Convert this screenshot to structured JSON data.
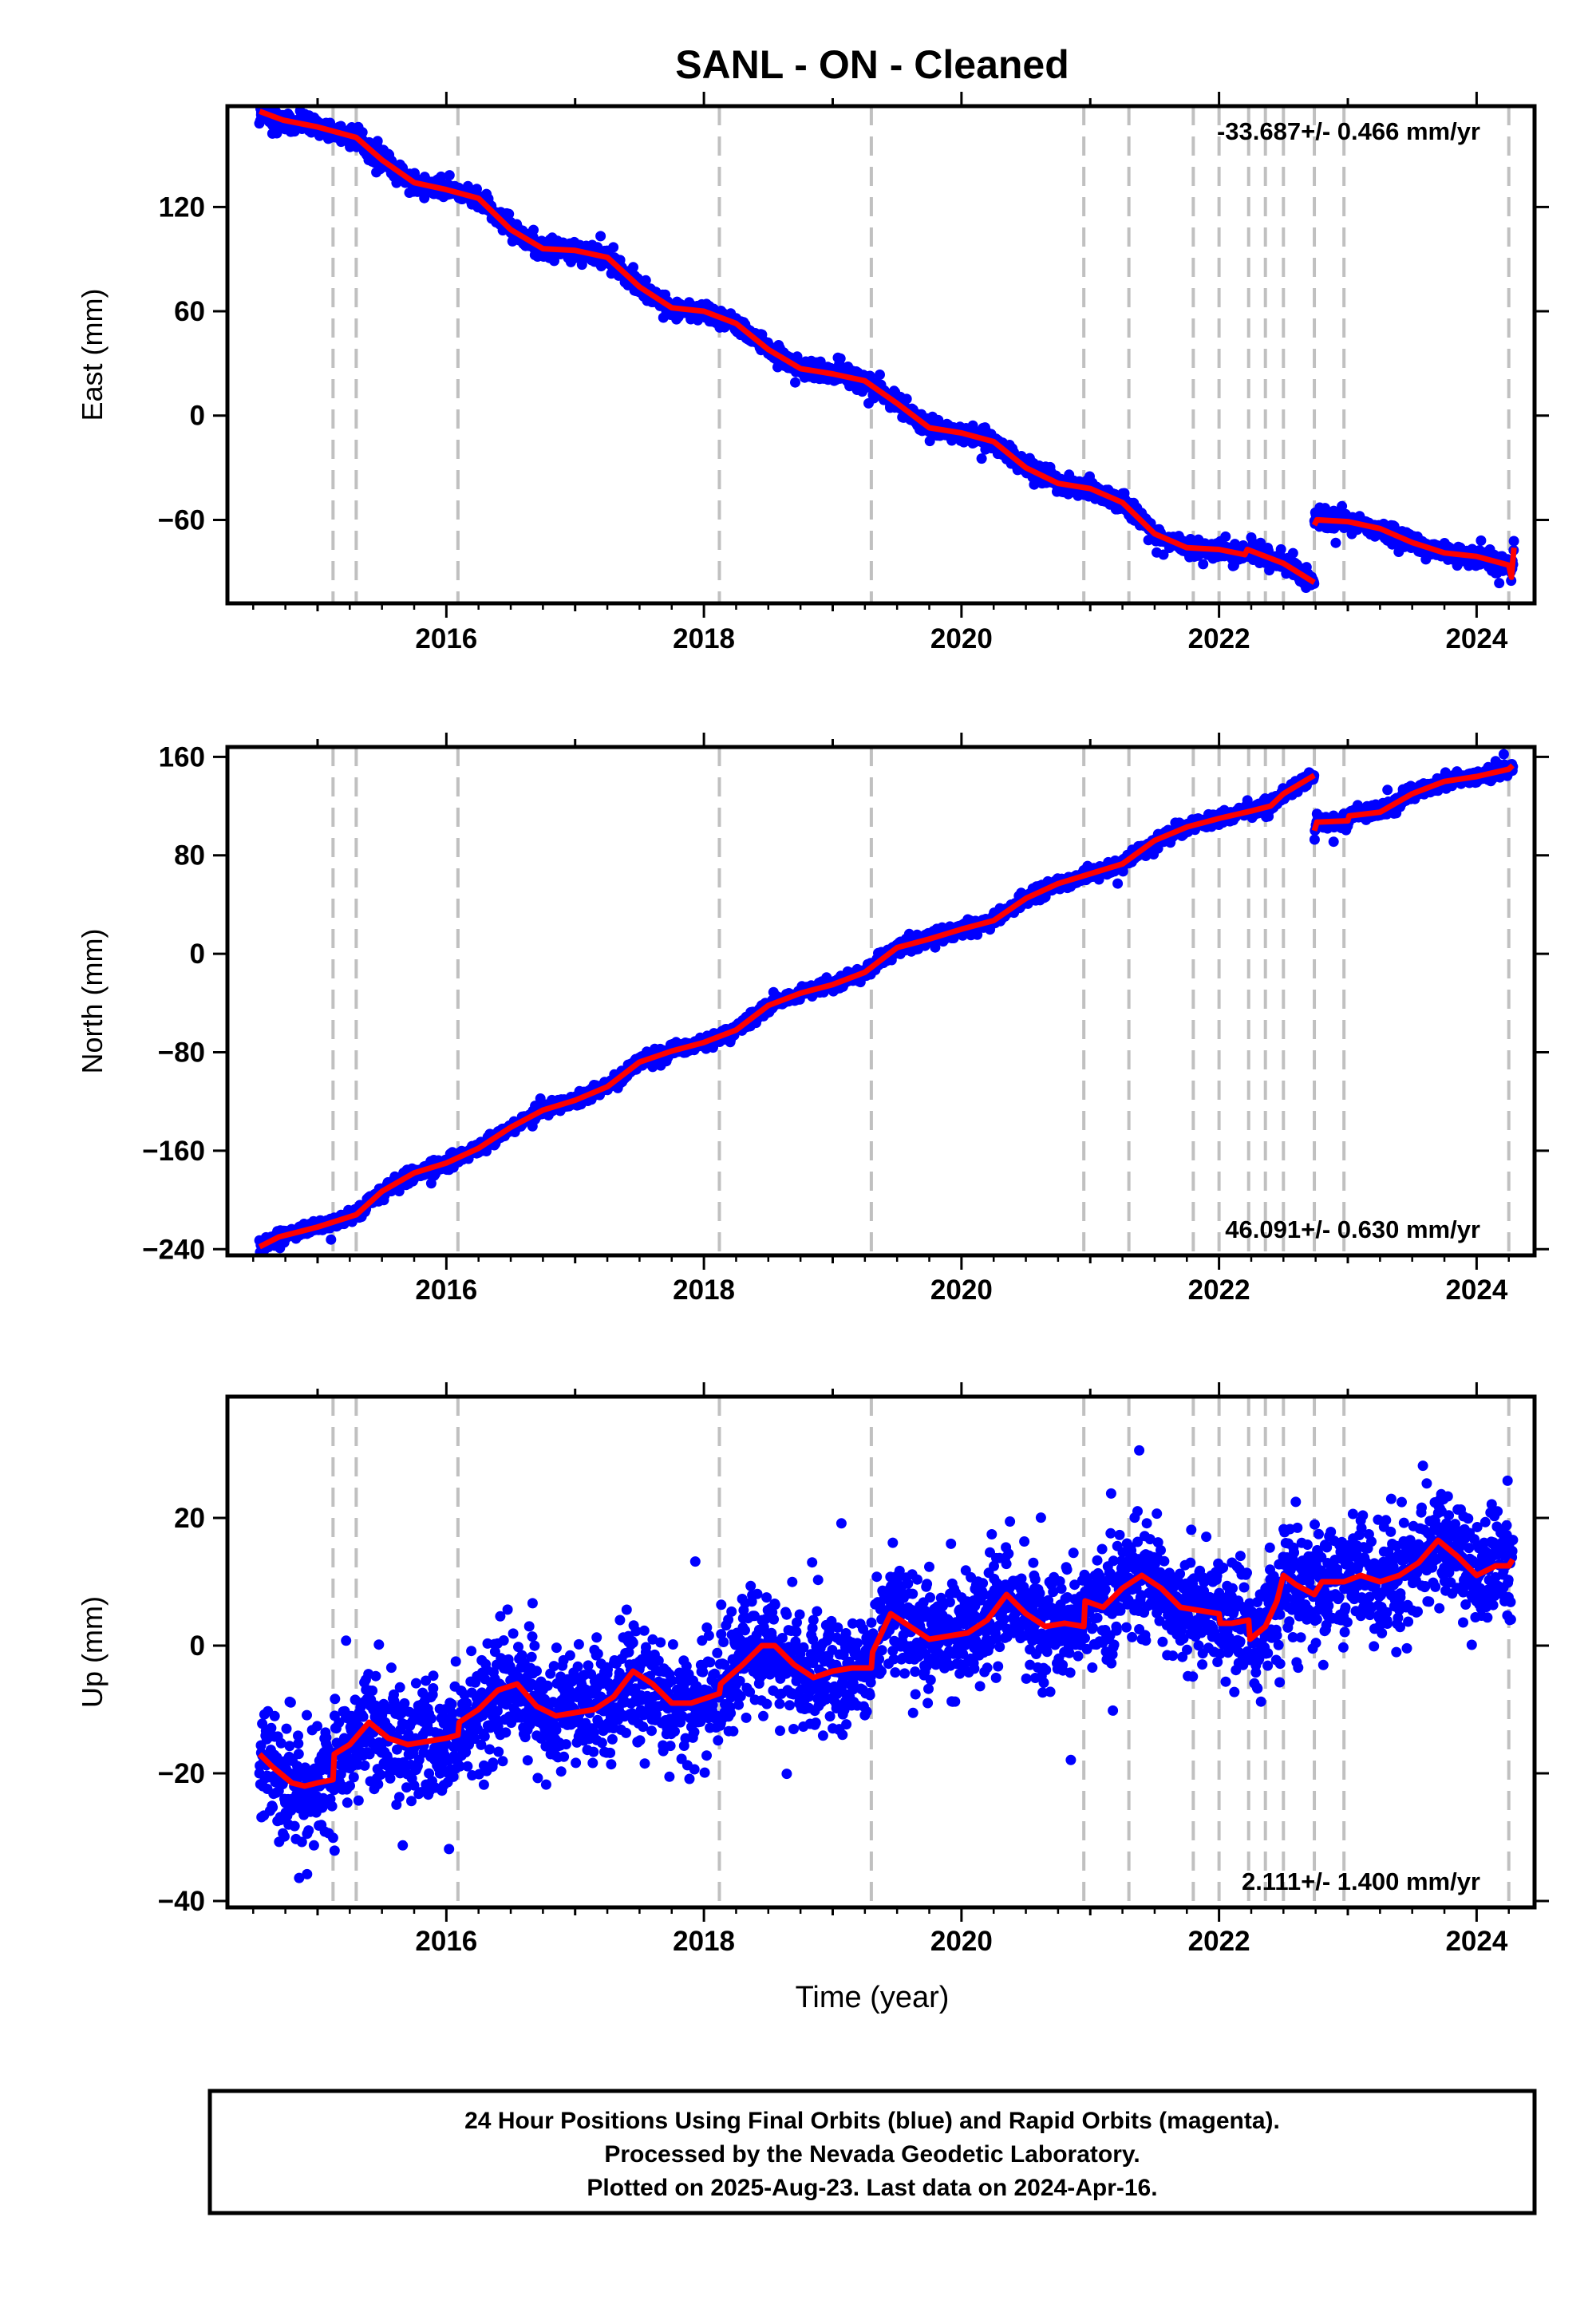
{
  "title": "SANL  - ON - Cleaned",
  "colors": {
    "data": "#0000ff",
    "model": "#ff0000",
    "offset_line": "#c0c0c0",
    "axis": "#000000"
  },
  "chart_data": [
    {
      "type": "scatter",
      "name": "east",
      "ylabel": "East (mm)",
      "rate_label": "-33.687+/- 0.466 mm/yr",
      "rate_position": "top-right",
      "xlim": [
        2014.3,
        2024.45
      ],
      "ylim": [
        -108,
        178
      ],
      "yticks": [
        -60,
        0,
        60,
        120
      ],
      "xticks": [
        2016,
        2018,
        2020,
        2022,
        2024
      ],
      "grid": false,
      "model_series": {
        "x": [
          2014.55,
          2014.73,
          2015.0,
          2015.3,
          2015.5,
          2015.75,
          2016.0,
          2016.25,
          2016.5,
          2016.75,
          2017.0,
          2017.25,
          2017.5,
          2017.75,
          2018.0,
          2018.25,
          2018.5,
          2018.75,
          2019.0,
          2019.25,
          2019.5,
          2019.75,
          2020.0,
          2020.25,
          2020.5,
          2020.75,
          2021.0,
          2021.25,
          2021.5,
          2021.75,
          2022.0,
          2022.2,
          2022.22,
          2022.5,
          2022.74
        ],
        "y": [
          175,
          170,
          166,
          160,
          147,
          134,
          130,
          125,
          107,
          96,
          95,
          91,
          74,
          62,
          60,
          53,
          38,
          27,
          24,
          20,
          7,
          -7,
          -10,
          -15,
          -30,
          -39,
          -42,
          -50,
          -68,
          -76,
          -77,
          -80,
          -77,
          -85,
          -96
        ]
      },
      "model_series_2": {
        "x": [
          2022.74,
          2022.76,
          2023.0,
          2023.25,
          2023.5,
          2023.75,
          2024.0,
          2024.25,
          2024.27,
          2024.29
        ],
        "y": [
          -63,
          -60,
          -61,
          -65,
          -73,
          -79,
          -81,
          -86,
          -93,
          -76
        ]
      },
      "points_count": 2900,
      "scatter_std": 2.5,
      "offset_epochs": [
        2015.12,
        2015.3,
        2016.09,
        2018.12,
        2019.3,
        2020.95,
        2021.3,
        2021.8,
        2022.0,
        2022.23,
        2022.36,
        2022.5,
        2022.74,
        2022.97,
        2024.25
      ]
    },
    {
      "type": "scatter",
      "name": "north",
      "ylabel": "North (mm)",
      "rate_label": "46.091+/- 0.630 mm/yr",
      "rate_position": "bottom-right",
      "xlim": [
        2014.3,
        2024.45
      ],
      "ylim": [
        -245,
        168
      ],
      "yticks": [
        -240,
        -160,
        -80,
        0,
        80,
        160
      ],
      "xticks": [
        2016,
        2018,
        2020,
        2022,
        2024
      ],
      "grid": false,
      "model_series": {
        "x": [
          2014.55,
          2014.7,
          2015.0,
          2015.3,
          2015.5,
          2015.75,
          2016.0,
          2016.25,
          2016.5,
          2016.75,
          2017.0,
          2017.25,
          2017.5,
          2017.75,
          2018.0,
          2018.25,
          2018.5,
          2018.75,
          2019.0,
          2019.25,
          2019.5,
          2019.75,
          2020.0,
          2020.25,
          2020.5,
          2020.75,
          2021.0,
          2021.25,
          2021.5,
          2021.75,
          2022.0,
          2022.25,
          2022.4,
          2022.5,
          2022.74
        ],
        "y": [
          -238,
          -230,
          -222,
          -212,
          -193,
          -178,
          -170,
          -158,
          -141,
          -127,
          -119,
          -108,
          -88,
          -79,
          -72,
          -62,
          -42,
          -32,
          -25,
          -15,
          5,
          12,
          20,
          27,
          45,
          57,
          65,
          73,
          92,
          103,
          110,
          116,
          120,
          130,
          145
        ]
      },
      "model_series_2": {
        "x": [
          2022.74,
          2022.76,
          2023.0,
          2023.01,
          2023.25,
          2023.5,
          2023.75,
          2024.0,
          2024.25,
          2024.28
        ],
        "y": [
          100,
          107,
          108,
          112,
          115,
          130,
          140,
          144,
          150,
          153
        ]
      },
      "points_count": 2900,
      "scatter_std": 2.6,
      "offset_epochs": [
        2015.12,
        2015.3,
        2016.09,
        2018.12,
        2019.3,
        2020.95,
        2021.3,
        2021.8,
        2022.0,
        2022.23,
        2022.36,
        2022.5,
        2022.74,
        2022.97,
        2024.25
      ]
    },
    {
      "type": "scatter",
      "name": "up",
      "ylabel": "Up (mm)",
      "rate_label": "2.111+/- 1.400 mm/yr",
      "rate_position": "bottom-right",
      "xlim": [
        2014.3,
        2024.45
      ],
      "ylim": [
        -41,
        39
      ],
      "yticks": [
        -40,
        -20,
        0,
        20
      ],
      "xticks": [
        2016,
        2018,
        2020,
        2022,
        2024
      ],
      "grid": false,
      "model_series": {
        "x": [
          2014.55,
          2014.65,
          2014.8,
          2014.9,
          2015.0,
          2015.12,
          2015.13,
          2015.25,
          2015.4,
          2015.55,
          2015.7,
          2015.85,
          2016.0,
          2016.09,
          2016.1,
          2016.25,
          2016.4,
          2016.55,
          2016.7,
          2016.85,
          2017.0,
          2017.15,
          2017.3,
          2017.45,
          2017.6,
          2017.75,
          2017.9,
          2018.05,
          2018.12,
          2018.13,
          2018.3,
          2018.45,
          2018.55,
          2018.7,
          2018.85,
          2019.0,
          2019.15,
          2019.3,
          2019.31,
          2019.45,
          2019.6,
          2019.75,
          2019.9,
          2020.05,
          2020.2,
          2020.35,
          2020.5,
          2020.65,
          2020.8,
          2020.95,
          2020.96,
          2021.1,
          2021.25,
          2021.4,
          2021.55,
          2021.7,
          2021.85,
          2022.0,
          2022.01,
          2022.1,
          2022.23,
          2022.24,
          2022.36,
          2022.45,
          2022.5,
          2022.6,
          2022.74,
          2022.8,
          2022.97,
          2023.1,
          2023.25,
          2023.4,
          2023.55,
          2023.7,
          2023.85,
          2024.0,
          2024.15,
          2024.25,
          2024.28
        ],
        "y": [
          -17,
          -19,
          -21.5,
          -22,
          -21.5,
          -21,
          -17,
          -15.5,
          -12,
          -14.5,
          -15.5,
          -15,
          -14.5,
          -14,
          -12,
          -10,
          -7,
          -6,
          -9.5,
          -11,
          -10.5,
          -10,
          -8,
          -4,
          -6,
          -9,
          -9,
          -8,
          -7.5,
          -6,
          -3,
          0,
          0,
          -3,
          -5,
          -4,
          -3.5,
          -3.5,
          -1,
          5,
          3,
          1,
          1.5,
          2,
          4,
          8,
          5,
          3,
          3.5,
          3,
          7,
          6,
          9,
          11,
          9,
          6,
          5.5,
          5,
          3.5,
          3.5,
          4,
          1,
          3,
          7,
          11,
          9.5,
          8,
          10,
          10,
          11,
          10,
          11,
          13,
          16.5,
          14,
          11,
          12.5,
          12.5,
          13.5
        ]
      },
      "points_count": 3200,
      "scatter_std": 4.4,
      "offset_epochs": [
        2015.12,
        2015.3,
        2016.09,
        2018.12,
        2019.3,
        2020.95,
        2021.3,
        2021.8,
        2022.0,
        2022.23,
        2022.36,
        2022.5,
        2022.74,
        2022.97,
        2024.25
      ]
    }
  ],
  "xlabel": "Time (year)",
  "footer": {
    "line1": "24 Hour Positions Using Final Orbits (blue) and Rapid Orbits (magenta).",
    "line2": "Processed by the Nevada Geodetic Laboratory.",
    "line3": "Plotted on 2025-Aug-23. Last data on 2024-Apr-16."
  }
}
